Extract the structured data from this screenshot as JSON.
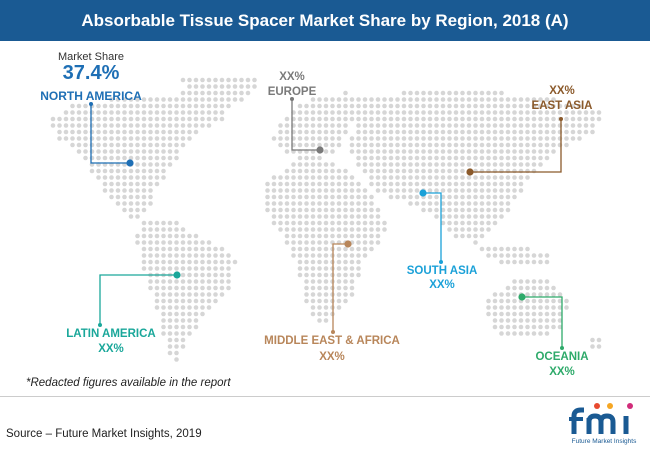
{
  "title": "Absorbable Tissue Spacer Market Share by Region, 2018 (A)",
  "chart_data": {
    "type": "map",
    "regions": [
      {
        "id": "north-america",
        "name": "NORTH AMERICA",
        "value": "37.4%",
        "value_label": "Market Share",
        "color": "#1e6fb5"
      },
      {
        "id": "europe",
        "name": "EUROPE",
        "value": "XX%",
        "color": "#7a7a7a"
      },
      {
        "id": "east-asia",
        "name": "EAST ASIA",
        "value": "XX%",
        "color": "#8b5a2b"
      },
      {
        "id": "south-asia",
        "name": "SOUTH ASIA",
        "value": "XX%",
        "color": "#1ba1d8"
      },
      {
        "id": "latin-america",
        "name": "LATIN AMERICA",
        "value": "XX%",
        "color": "#1aa79a"
      },
      {
        "id": "mea",
        "name": "MIDDLE EAST & AFRICA",
        "value": "XX%",
        "color": "#b8865a"
      },
      {
        "id": "oceania",
        "name": "OCEANIA",
        "value": "XX%",
        "color": "#2eaa6a"
      }
    ]
  },
  "footnote": "*Redacted figures available in the report",
  "source": "Source – Future Market Insights, 2019",
  "logo": {
    "text": "fmi",
    "tagline": "Future Market Insights"
  },
  "colors": {
    "title_bar": "#1a5a93",
    "dots": "#d6d6d6"
  }
}
